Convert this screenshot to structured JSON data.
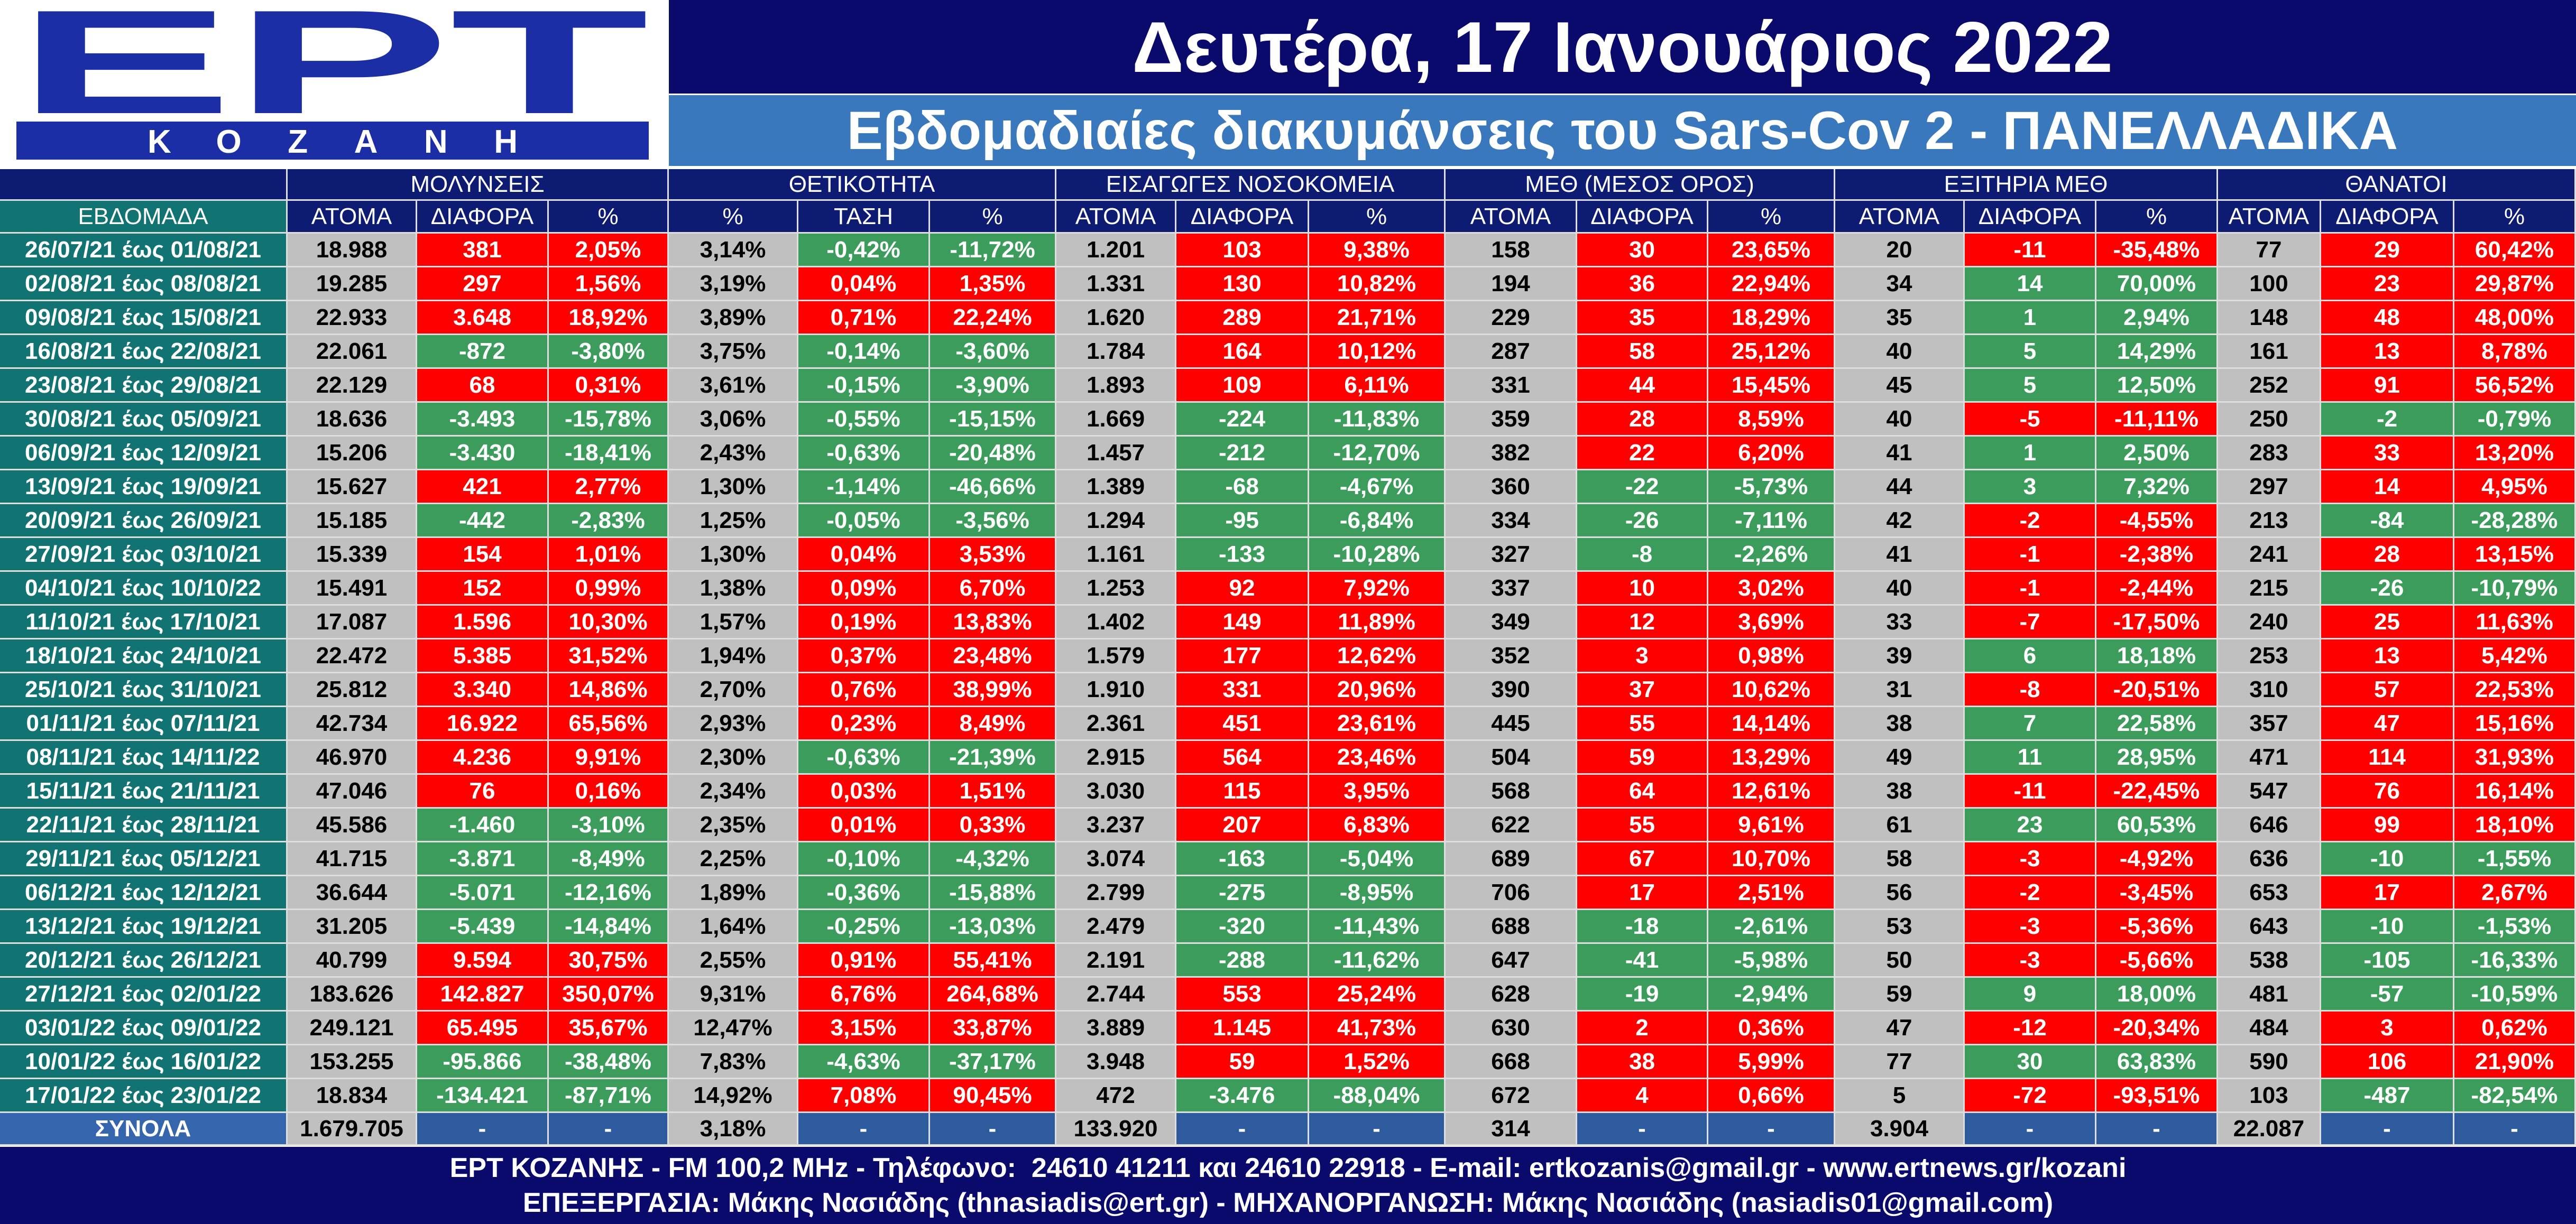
{
  "logo": {
    "brand": "ΕΡΤ",
    "station": "ΚΟΖΑΝΗ"
  },
  "header": {
    "date": "Δευτέρα, 17 Ιανουάριος 2022",
    "subtitle": "Εβδομαδιαίες διακυμάνσεις του Sars-Cov 2 - ΠΑΝΕΛΛΑΔΙΚΑ"
  },
  "colors": {
    "navy": "#0d1b72",
    "teal": "#127373",
    "red": "#ff0000",
    "green": "#3c9c5c",
    "gray": "#c0c0c0",
    "totals_blue": "#2d5b9e",
    "totals_label": "#3566ad",
    "logo_blue": "#1b2ea5"
  },
  "chart_data": {
    "type": "table",
    "row_header": "ΕΒΔΟΜΑΔΑ",
    "groups": [
      {
        "label": "ΜΟΛΥΝΣΕΙΣ",
        "columns": [
          "ΑΤΟΜΑ",
          "ΔΙΑΦΟΡΑ",
          "%"
        ]
      },
      {
        "label": "ΘΕΤΙΚΟΤΗΤΑ",
        "columns": [
          "%",
          "ΤΑΣΗ",
          "%"
        ]
      },
      {
        "label": "ΕΙΣΑΓΩΓΕΣ ΝΟΣΟΚΟΜΕΙΑ",
        "columns": [
          "ΑΤΟΜΑ",
          "ΔΙΑΦΟΡΑ",
          "%"
        ]
      },
      {
        "label": "ΜΕΘ (ΜΕΣΟΣ ΟΡΟΣ)",
        "columns": [
          "ΑΤΟΜΑ",
          "ΔΙΑΦΟΡΑ",
          "%"
        ]
      },
      {
        "label": "ΕΞΙΤΗΡΙΑ ΜΕΘ",
        "columns": [
          "ΑΤΟΜΑ",
          "ΔΙΑΦΟΡΑ",
          "%"
        ]
      },
      {
        "label": "ΘΑΝΑΤΟΙ",
        "columns": [
          "ΑΤΟΜΑ",
          "ΔΙΑΦΟΡΑ",
          "%"
        ]
      }
    ],
    "rows": [
      {
        "week": "26/07/21 έως 01/08/21",
        "values": [
          "18.988",
          "381",
          "2,05%",
          "3,14%",
          "-0,42%",
          "-11,72%",
          "1.201",
          "103",
          "9,38%",
          "158",
          "30",
          "23,65%",
          "20",
          "-11",
          "-35,48%",
          "77",
          "29",
          "60,42%"
        ]
      },
      {
        "week": "02/08/21 έως 08/08/21",
        "values": [
          "19.285",
          "297",
          "1,56%",
          "3,19%",
          "0,04%",
          "1,35%",
          "1.331",
          "130",
          "10,82%",
          "194",
          "36",
          "22,94%",
          "34",
          "14",
          "70,00%",
          "100",
          "23",
          "29,87%"
        ]
      },
      {
        "week": "09/08/21 έως 15/08/21",
        "values": [
          "22.933",
          "3.648",
          "18,92%",
          "3,89%",
          "0,71%",
          "22,24%",
          "1.620",
          "289",
          "21,71%",
          "229",
          "35",
          "18,29%",
          "35",
          "1",
          "2,94%",
          "148",
          "48",
          "48,00%"
        ]
      },
      {
        "week": "16/08/21 έως 22/08/21",
        "values": [
          "22.061",
          "-872",
          "-3,80%",
          "3,75%",
          "-0,14%",
          "-3,60%",
          "1.784",
          "164",
          "10,12%",
          "287",
          "58",
          "25,12%",
          "40",
          "5",
          "14,29%",
          "161",
          "13",
          "8,78%"
        ]
      },
      {
        "week": "23/08/21 έως 29/08/21",
        "values": [
          "22.129",
          "68",
          "0,31%",
          "3,61%",
          "-0,15%",
          "-3,90%",
          "1.893",
          "109",
          "6,11%",
          "331",
          "44",
          "15,45%",
          "45",
          "5",
          "12,50%",
          "252",
          "91",
          "56,52%"
        ]
      },
      {
        "week": "30/08/21 έως 05/09/21",
        "values": [
          "18.636",
          "-3.493",
          "-15,78%",
          "3,06%",
          "-0,55%",
          "-15,15%",
          "1.669",
          "-224",
          "-11,83%",
          "359",
          "28",
          "8,59%",
          "40",
          "-5",
          "-11,11%",
          "250",
          "-2",
          "-0,79%"
        ]
      },
      {
        "week": "06/09/21 έως 12/09/21",
        "values": [
          "15.206",
          "-3.430",
          "-18,41%",
          "2,43%",
          "-0,63%",
          "-20,48%",
          "1.457",
          "-212",
          "-12,70%",
          "382",
          "22",
          "6,20%",
          "41",
          "1",
          "2,50%",
          "283",
          "33",
          "13,20%"
        ]
      },
      {
        "week": "13/09/21 έως 19/09/21",
        "values": [
          "15.627",
          "421",
          "2,77%",
          "1,30%",
          "-1,14%",
          "-46,66%",
          "1.389",
          "-68",
          "-4,67%",
          "360",
          "-22",
          "-5,73%",
          "44",
          "3",
          "7,32%",
          "297",
          "14",
          "4,95%"
        ]
      },
      {
        "week": "20/09/21 έως 26/09/21",
        "values": [
          "15.185",
          "-442",
          "-2,83%",
          "1,25%",
          "-0,05%",
          "-3,56%",
          "1.294",
          "-95",
          "-6,84%",
          "334",
          "-26",
          "-7,11%",
          "42",
          "-2",
          "-4,55%",
          "213",
          "-84",
          "-28,28%"
        ]
      },
      {
        "week": "27/09/21 έως 03/10/21",
        "values": [
          "15.339",
          "154",
          "1,01%",
          "1,30%",
          "0,04%",
          "3,53%",
          "1.161",
          "-133",
          "-10,28%",
          "327",
          "-8",
          "-2,26%",
          "41",
          "-1",
          "-2,38%",
          "241",
          "28",
          "13,15%"
        ]
      },
      {
        "week": "04/10/21 έως 10/10/22",
        "values": [
          "15.491",
          "152",
          "0,99%",
          "1,38%",
          "0,09%",
          "6,70%",
          "1.253",
          "92",
          "7,92%",
          "337",
          "10",
          "3,02%",
          "40",
          "-1",
          "-2,44%",
          "215",
          "-26",
          "-10,79%"
        ]
      },
      {
        "week": "11/10/21 έως 17/10/21",
        "values": [
          "17.087",
          "1.596",
          "10,30%",
          "1,57%",
          "0,19%",
          "13,83%",
          "1.402",
          "149",
          "11,89%",
          "349",
          "12",
          "3,69%",
          "33",
          "-7",
          "-17,50%",
          "240",
          "25",
          "11,63%"
        ]
      },
      {
        "week": "18/10/21 έως 24/10/21",
        "values": [
          "22.472",
          "5.385",
          "31,52%",
          "1,94%",
          "0,37%",
          "23,48%",
          "1.579",
          "177",
          "12,62%",
          "352",
          "3",
          "0,98%",
          "39",
          "6",
          "18,18%",
          "253",
          "13",
          "5,42%"
        ]
      },
      {
        "week": "25/10/21 έως 31/10/21",
        "values": [
          "25.812",
          "3.340",
          "14,86%",
          "2,70%",
          "0,76%",
          "38,99%",
          "1.910",
          "331",
          "20,96%",
          "390",
          "37",
          "10,62%",
          "31",
          "-8",
          "-20,51%",
          "310",
          "57",
          "22,53%"
        ]
      },
      {
        "week": "01/11/21 έως 07/11/21",
        "values": [
          "42.734",
          "16.922",
          "65,56%",
          "2,93%",
          "0,23%",
          "8,49%",
          "2.361",
          "451",
          "23,61%",
          "445",
          "55",
          "14,14%",
          "38",
          "7",
          "22,58%",
          "357",
          "47",
          "15,16%"
        ]
      },
      {
        "week": "08/11/21 έως 14/11/22",
        "values": [
          "46.970",
          "4.236",
          "9,91%",
          "2,30%",
          "-0,63%",
          "-21,39%",
          "2.915",
          "564",
          "23,46%",
          "504",
          "59",
          "13,29%",
          "49",
          "11",
          "28,95%",
          "471",
          "114",
          "31,93%"
        ]
      },
      {
        "week": "15/11/21 έως 21/11/21",
        "values": [
          "47.046",
          "76",
          "0,16%",
          "2,34%",
          "0,03%",
          "1,51%",
          "3.030",
          "115",
          "3,95%",
          "568",
          "64",
          "12,61%",
          "38",
          "-11",
          "-22,45%",
          "547",
          "76",
          "16,14%"
        ]
      },
      {
        "week": "22/11/21 έως 28/11/21",
        "values": [
          "45.586",
          "-1.460",
          "-3,10%",
          "2,35%",
          "0,01%",
          "0,33%",
          "3.237",
          "207",
          "6,83%",
          "622",
          "55",
          "9,61%",
          "61",
          "23",
          "60,53%",
          "646",
          "99",
          "18,10%"
        ]
      },
      {
        "week": "29/11/21 έως 05/12/21",
        "values": [
          "41.715",
          "-3.871",
          "-8,49%",
          "2,25%",
          "-0,10%",
          "-4,32%",
          "3.074",
          "-163",
          "-5,04%",
          "689",
          "67",
          "10,70%",
          "58",
          "-3",
          "-4,92%",
          "636",
          "-10",
          "-1,55%"
        ]
      },
      {
        "week": "06/12/21 έως 12/12/21",
        "values": [
          "36.644",
          "-5.071",
          "-12,16%",
          "1,89%",
          "-0,36%",
          "-15,88%",
          "2.799",
          "-275",
          "-8,95%",
          "706",
          "17",
          "2,51%",
          "56",
          "-2",
          "-3,45%",
          "653",
          "17",
          "2,67%"
        ]
      },
      {
        "week": "13/12/21 έως 19/12/21",
        "values": [
          "31.205",
          "-5.439",
          "-14,84%",
          "1,64%",
          "-0,25%",
          "-13,03%",
          "2.479",
          "-320",
          "-11,43%",
          "688",
          "-18",
          "-2,61%",
          "53",
          "-3",
          "-5,36%",
          "643",
          "-10",
          "-1,53%"
        ]
      },
      {
        "week": "20/12/21 έως 26/12/21",
        "values": [
          "40.799",
          "9.594",
          "30,75%",
          "2,55%",
          "0,91%",
          "55,41%",
          "2.191",
          "-288",
          "-11,62%",
          "647",
          "-41",
          "-5,98%",
          "50",
          "-3",
          "-5,66%",
          "538",
          "-105",
          "-16,33%"
        ]
      },
      {
        "week": "27/12/21 έως 02/01/22",
        "values": [
          "183.626",
          "142.827",
          "350,07%",
          "9,31%",
          "6,76%",
          "264,68%",
          "2.744",
          "553",
          "25,24%",
          "628",
          "-19",
          "-2,94%",
          "59",
          "9",
          "18,00%",
          "481",
          "-57",
          "-10,59%"
        ]
      },
      {
        "week": "03/01/22 έως 09/01/22",
        "values": [
          "249.121",
          "65.495",
          "35,67%",
          "12,47%",
          "3,15%",
          "33,87%",
          "3.889",
          "1.145",
          "41,73%",
          "630",
          "2",
          "0,36%",
          "47",
          "-12",
          "-20,34%",
          "484",
          "3",
          "0,62%"
        ]
      },
      {
        "week": "10/01/22 έως 16/01/22",
        "values": [
          "153.255",
          "-95.866",
          "-38,48%",
          "7,83%",
          "-4,63%",
          "-37,17%",
          "3.948",
          "59",
          "1,52%",
          "668",
          "38",
          "5,99%",
          "77",
          "30",
          "63,83%",
          "590",
          "106",
          "21,90%"
        ]
      },
      {
        "week": "17/01/22 έως 23/01/22",
        "values": [
          "18.834",
          "-134.421",
          "-87,71%",
          "14,92%",
          "7,08%",
          "90,45%",
          "472",
          "-3.476",
          "-88,04%",
          "672",
          "4",
          "0,66%",
          "5",
          "-72",
          "-93,51%",
          "103",
          "-487",
          "-82,54%"
        ]
      }
    ],
    "totals": {
      "label": "ΣΥΝΟΛΑ",
      "values": [
        "1.679.705",
        "-",
        "-",
        "3,18%",
        "-",
        "-",
        "133.920",
        "-",
        "-",
        "314",
        "-",
        "-",
        "3.904",
        "-",
        "-",
        "22.087",
        "-",
        "-"
      ]
    }
  },
  "footer": {
    "line1": "ΕΡΤ ΚΟΖΑΝΗΣ - FM 100,2 MHz - Τηλέφωνο:  24610 41211 και 24610 22918 - E-mail: ertkozanis@gmail.gr - www.ertnews.gr/kozani",
    "line2": "ΕΠΕΞΕΡΓΑΣΙΑ: Μάκης Νασιάδης (thnasiadis@ert.gr) - ΜΗΧΑΝΟΡΓΑΝΩΣΗ: Μάκης Νασιάδης (nasiadis01@gmail.com)"
  }
}
